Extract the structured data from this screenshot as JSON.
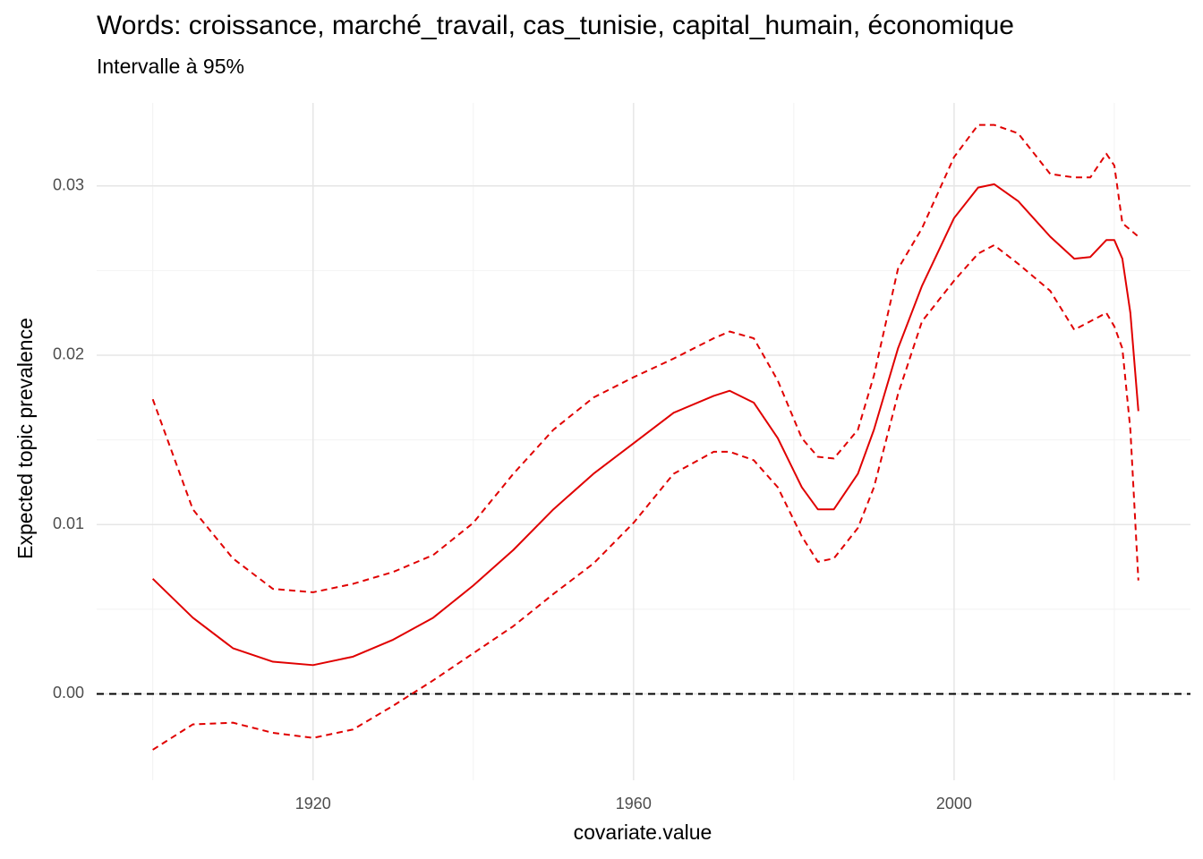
{
  "chart_data": {
    "type": "line",
    "title": "Words: croissance, marché_travail, cas_tunisie, capital_humain, économique",
    "subtitle": "Intervalle à 95%",
    "xlabel": "covariate.value",
    "ylabel": "Expected topic prevalence",
    "x": [
      1900,
      1905,
      1910,
      1915,
      1920,
      1925,
      1930,
      1935,
      1940,
      1945,
      1950,
      1955,
      1960,
      1965,
      1970,
      1972,
      1975,
      1978,
      1981,
      1983,
      1985,
      1988,
      1990,
      1993,
      1996,
      2000,
      2003,
      2005,
      2008,
      2012,
      2015,
      2017,
      2019,
      2020,
      2021,
      2022,
      2023
    ],
    "series": [
      {
        "name": "mean",
        "color": "#e00000",
        "dashed": false,
        "values": [
          0.0068,
          0.0045,
          0.0027,
          0.0019,
          0.0017,
          0.0022,
          0.0032,
          0.0045,
          0.0064,
          0.0085,
          0.0109,
          0.013,
          0.0148,
          0.0166,
          0.0176,
          0.0179,
          0.0172,
          0.0151,
          0.0122,
          0.0109,
          0.0109,
          0.013,
          0.0156,
          0.0204,
          0.0241,
          0.0281,
          0.0299,
          0.0301,
          0.0291,
          0.027,
          0.0257,
          0.0258,
          0.0268,
          0.0268,
          0.0257,
          0.0225,
          0.0167
        ]
      },
      {
        "name": "upper",
        "color": "#e00000",
        "dashed": true,
        "values": [
          0.0174,
          0.0109,
          0.008,
          0.0062,
          0.006,
          0.0065,
          0.0072,
          0.0082,
          0.0101,
          0.013,
          0.0156,
          0.0175,
          0.0187,
          0.0198,
          0.021,
          0.0214,
          0.021,
          0.0185,
          0.0151,
          0.014,
          0.0139,
          0.0156,
          0.0188,
          0.0251,
          0.0275,
          0.0317,
          0.0336,
          0.0336,
          0.0331,
          0.0307,
          0.0305,
          0.0305,
          0.0319,
          0.0312,
          0.0278,
          0.0274,
          0.027
        ]
      },
      {
        "name": "lower",
        "color": "#e00000",
        "dashed": true,
        "values": [
          -0.0033,
          -0.0018,
          -0.0017,
          -0.0023,
          -0.0026,
          -0.0021,
          -0.0007,
          0.0008,
          0.0024,
          0.004,
          0.0059,
          0.0077,
          0.0101,
          0.013,
          0.0143,
          0.0143,
          0.0138,
          0.0122,
          0.0093,
          0.0078,
          0.008,
          0.0098,
          0.0122,
          0.0177,
          0.022,
          0.0244,
          0.026,
          0.0265,
          0.0254,
          0.0238,
          0.0215,
          0.022,
          0.0225,
          0.0217,
          0.0204,
          0.0156,
          0.0067
        ]
      }
    ],
    "hline": 0,
    "xlim": [
      1893,
      2029.5
    ],
    "ylim": [
      -0.0051,
      0.0349
    ],
    "xticks": [
      1920,
      1960,
      2000
    ],
    "yticks": [
      {
        "value": 0,
        "label": "0.00"
      },
      {
        "value": 0.01,
        "label": "0.01"
      },
      {
        "value": 0.02,
        "label": "0.02"
      },
      {
        "value": 0.03,
        "label": "0.03"
      }
    ],
    "xminor": [
      1900,
      1940,
      1980,
      2020
    ],
    "yminor": [
      0.005,
      0.015,
      0.025
    ],
    "grid": true
  }
}
